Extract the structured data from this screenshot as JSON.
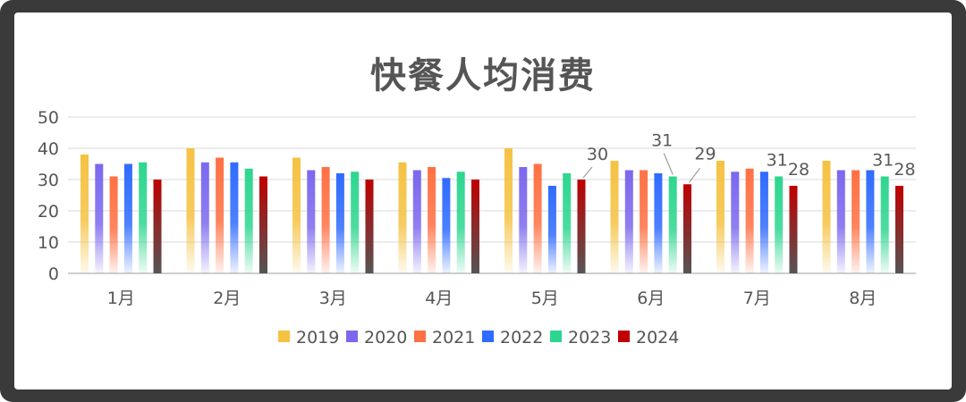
{
  "chart_data": {
    "type": "bar",
    "title": "快餐人均消费",
    "categories": [
      "1月",
      "2月",
      "3月",
      "4月",
      "5月",
      "6月",
      "7月",
      "8月"
    ],
    "ylim": [
      0,
      50
    ],
    "yticks": [
      "0",
      "10",
      "20",
      "30",
      "40",
      "50"
    ],
    "grid": true,
    "legend_position": "bottom",
    "series": [
      {
        "name": "2019",
        "color": "#F5C242",
        "values": [
          38,
          40,
          37,
          35.5,
          40,
          36,
          36,
          36
        ]
      },
      {
        "name": "2020",
        "color": "#7B68EE",
        "values": [
          35,
          35.5,
          33,
          33,
          34,
          33,
          32.5,
          33
        ]
      },
      {
        "name": "2021",
        "color": "#FF7043",
        "values": [
          31,
          37,
          34,
          34,
          35,
          33,
          33.5,
          33
        ]
      },
      {
        "name": "2022",
        "color": "#2F6BFF",
        "values": [
          35,
          35.5,
          32,
          30.5,
          28,
          32,
          32.5,
          33
        ]
      },
      {
        "name": "2023",
        "color": "#2DD68F",
        "values": [
          35.5,
          33.5,
          32.5,
          32.5,
          32,
          31,
          31,
          31
        ]
      },
      {
        "name": "2024",
        "color": "#C00000",
        "values": [
          30,
          31,
          30,
          30,
          30,
          28.5,
          28,
          28
        ]
      }
    ],
    "data_labels": [
      {
        "category": "5月",
        "series": "2024",
        "text": "30"
      },
      {
        "category": "6月",
        "series": "2023",
        "text": "31"
      },
      {
        "category": "6月",
        "series": "2024",
        "text": "29"
      },
      {
        "category": "7月",
        "series": "2023",
        "text": "31"
      },
      {
        "category": "7月",
        "series": "2024",
        "text": "28"
      },
      {
        "category": "8月",
        "series": "2023",
        "text": "31"
      },
      {
        "category": "8月",
        "series": "2024",
        "text": "28"
      }
    ]
  }
}
